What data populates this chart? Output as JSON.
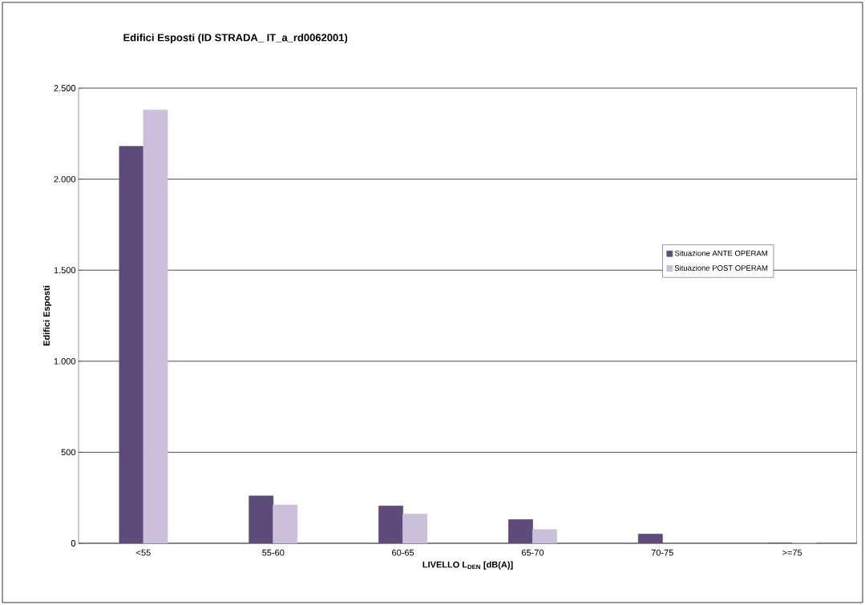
{
  "chart_data": {
    "type": "bar",
    "title": "Edifici Esposti (ID STRADA_ IT_a_rd0062001)",
    "xlabel": "LIVELLO L$_{DEN}$ [dB(A)]",
    "ylabel": "Edifici Esposti",
    "categories": [
      "<55",
      "55-60",
      "60-65",
      "65-70",
      "70-75",
      ">=75"
    ],
    "series": [
      {
        "name": "Situazione ANTE OPERAM",
        "color": "#5f4b7a",
        "values": [
          2180,
          260,
          205,
          130,
          50,
          0
        ]
      },
      {
        "name": "Situazione POST OPERAM",
        "color": "#cbbfdb",
        "values": [
          2380,
          210,
          160,
          75,
          null,
          0
        ]
      }
    ],
    "ylim": [
      0,
      2500
    ],
    "yticks": [
      {
        "value": 0,
        "label": "0"
      },
      {
        "value": 500,
        "label": "500"
      },
      {
        "value": 1000,
        "label": "1.000"
      },
      {
        "value": 1500,
        "label": "1.500"
      },
      {
        "value": 2000,
        "label": "2.000"
      },
      {
        "value": 2500,
        "label": "2.500"
      }
    ],
    "grid": "y",
    "legend": "right"
  }
}
